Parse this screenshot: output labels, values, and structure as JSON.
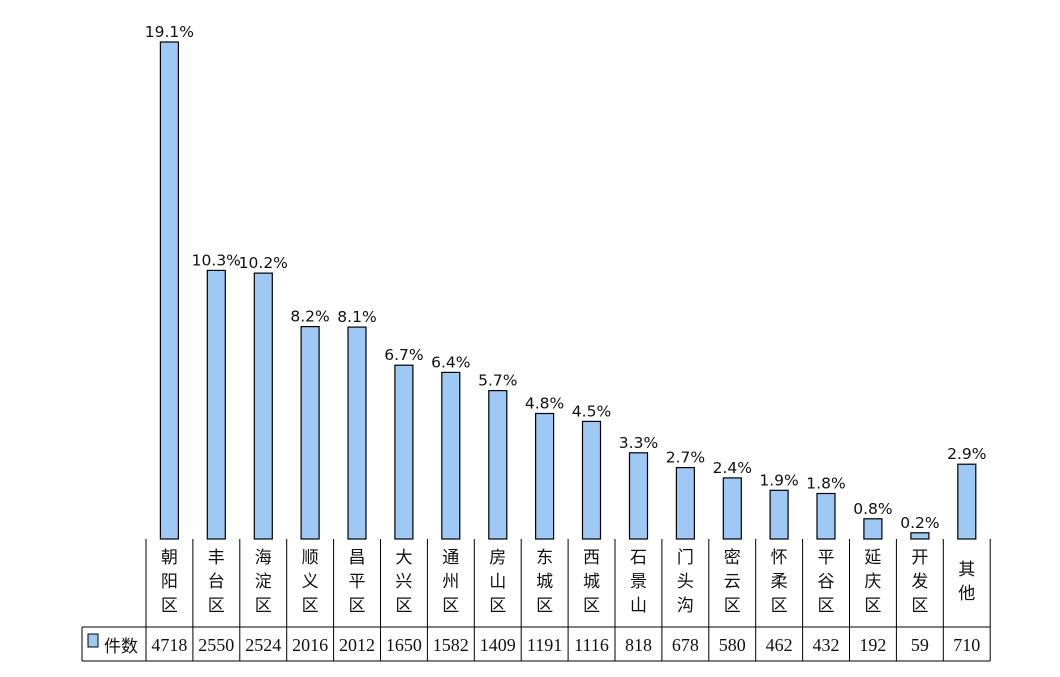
{
  "chart_data": {
    "type": "bar",
    "legend": {
      "label": "件数",
      "color": "#9ec9f5",
      "placement": "table-left"
    },
    "categories": [
      [
        "朝",
        "阳",
        "区"
      ],
      [
        "丰",
        "台",
        "区"
      ],
      [
        "海",
        "淀",
        "区"
      ],
      [
        "顺",
        "义",
        "区"
      ],
      [
        "昌",
        "平",
        "区"
      ],
      [
        "大",
        "兴",
        "区"
      ],
      [
        "通",
        "州",
        "区"
      ],
      [
        "房",
        "山",
        "区"
      ],
      [
        "东",
        "城",
        "区"
      ],
      [
        "西",
        "城",
        "区"
      ],
      [
        "石",
        "景",
        "山"
      ],
      [
        "门",
        "头",
        "沟"
      ],
      [
        "密",
        "云",
        "区"
      ],
      [
        "怀",
        "柔",
        "区"
      ],
      [
        "平",
        "谷",
        "区"
      ],
      [
        "延",
        "庆",
        "区"
      ],
      [
        "开",
        "发",
        "区"
      ],
      [
        "其",
        "他"
      ]
    ],
    "series": [
      {
        "name": "件数",
        "values": [
          4718,
          2550,
          2524,
          2016,
          2012,
          1650,
          1582,
          1409,
          1191,
          1116,
          818,
          678,
          580,
          462,
          432,
          192,
          59,
          710
        ]
      }
    ],
    "value_labels": [
      "4718",
      "2550",
      "2524",
      "2016",
      "2012",
      "1650",
      "1582",
      "1409",
      "1191",
      "1116",
      "818",
      "678",
      "580",
      "462",
      "432",
      "192",
      "59",
      "710"
    ],
    "percent_labels": [
      "19.1%",
      "10.3%",
      "10.2%",
      "8.2%",
      "8.1%",
      "6.7%",
      "6.4%",
      "5.7%",
      "4.8%",
      "4.5%",
      "3.3%",
      "2.7%",
      "2.4%",
      "1.9%",
      "1.8%",
      "0.8%",
      "0.2%",
      "2.9%"
    ],
    "ylim": [
      0,
      4718
    ],
    "grid": false,
    "bar_color": "#9ec9f5",
    "bar_edge_color": "#000000"
  }
}
